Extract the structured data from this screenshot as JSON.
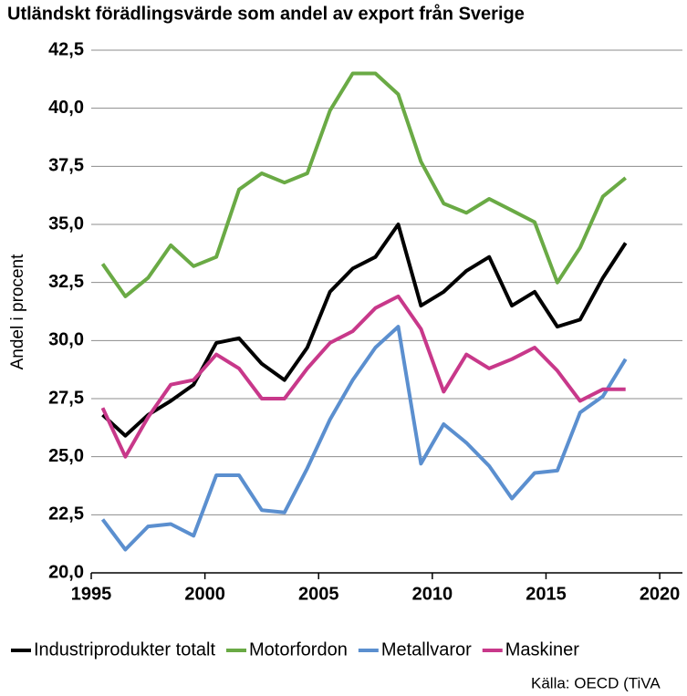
{
  "chart_data": {
    "type": "line",
    "title": "Utländskt förädlingsvärde som andel av export från Sverige",
    "y_label": "Andel i procent",
    "source": "Källa: OECD (TiVA",
    "x": [
      1995.5,
      1996.5,
      1997.5,
      1998.5,
      1999.5,
      2000.5,
      2001.5,
      2002.5,
      2003.5,
      2004.5,
      2005.5,
      2006.5,
      2007.5,
      2008.5,
      2009.5,
      2010.5,
      2011.5,
      2012.5,
      2013.5,
      2014.5,
      2015.5,
      2016.5,
      2017.5,
      2018.5
    ],
    "series": [
      {
        "name": "Industriprodukter totalt",
        "color": "#000000",
        "values": [
          26.8,
          25.9,
          26.8,
          27.4,
          28.1,
          29.9,
          30.1,
          29.0,
          28.3,
          29.7,
          32.1,
          33.1,
          33.6,
          35.0,
          31.5,
          32.1,
          33.0,
          33.6,
          31.5,
          32.1,
          30.6,
          30.9,
          32.7,
          34.2
        ]
      },
      {
        "name": "Motorfordon",
        "color": "#6aaa45",
        "values": [
          33.3,
          31.9,
          32.7,
          34.1,
          33.2,
          33.6,
          36.5,
          37.2,
          36.8,
          37.2,
          39.9,
          41.5,
          41.5,
          40.6,
          37.7,
          35.9,
          35.5,
          36.1,
          35.6,
          35.1,
          32.5,
          34.0,
          36.2,
          37.0
        ]
      },
      {
        "name": "Metallvaror",
        "color": "#5b8fcf",
        "values": [
          22.3,
          21.0,
          22.0,
          22.1,
          21.6,
          24.2,
          24.2,
          22.7,
          22.6,
          24.5,
          26.6,
          28.3,
          29.7,
          30.6,
          24.7,
          26.4,
          25.6,
          24.6,
          23.2,
          24.3,
          24.4,
          26.9,
          27.6,
          29.2
        ]
      },
      {
        "name": "Maskiner",
        "color": "#c8388a",
        "values": [
          27.1,
          25.0,
          26.7,
          28.1,
          28.3,
          29.4,
          28.8,
          27.5,
          27.5,
          28.8,
          29.9,
          30.4,
          31.4,
          31.9,
          30.5,
          27.8,
          29.4,
          28.8,
          29.2,
          29.7,
          28.7,
          27.4,
          27.9,
          27.9
        ]
      }
    ],
    "xlim": [
      1995,
      2021
    ],
    "xticks": [
      1995,
      2000,
      2005,
      2010,
      2015,
      2020
    ],
    "ylim": [
      20,
      42.5
    ],
    "yticks": [
      {
        "value": 20,
        "label": "20,0"
      },
      {
        "value": 22.5,
        "label": "22,5"
      },
      {
        "value": 25,
        "label": "25,0"
      },
      {
        "value": 27.5,
        "label": "27,5"
      },
      {
        "value": 30,
        "label": "30,0"
      },
      {
        "value": 32.5,
        "label": "32,5"
      },
      {
        "value": 35,
        "label": "35,0"
      },
      {
        "value": 37.5,
        "label": "37,5"
      },
      {
        "value": 40,
        "label": "40,0"
      },
      {
        "value": 42.5,
        "label": "42,5"
      }
    ],
    "grid": true,
    "legend": "bottom"
  }
}
